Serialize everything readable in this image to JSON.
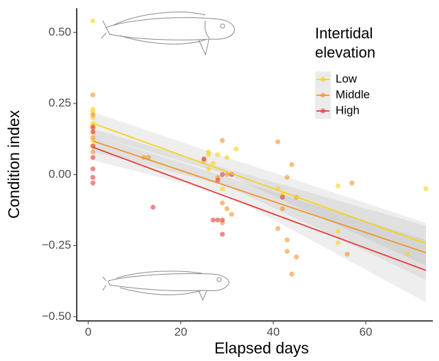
{
  "chart_data": {
    "type": "scatter",
    "x_label": "Elapsed days",
    "y_label": "Condition index",
    "legend_title": "Intertidal elevation",
    "xlim": [
      -2.5,
      74.5
    ],
    "ylim": [
      -0.515,
      0.585
    ],
    "xticks": [
      0,
      20,
      40,
      60
    ],
    "yticks": [
      {
        "value": 0.5,
        "label": "0.50"
      },
      {
        "value": 0.25,
        "label": "0.25"
      },
      {
        "value": 0,
        "label": "0.00"
      },
      {
        "value": -0.25,
        "label": "−0.25"
      },
      {
        "value": -0.5,
        "label": "−0.50"
      }
    ],
    "series": [
      {
        "name": "Low",
        "color": "#f5d316",
        "x": [
          1,
          1,
          1,
          1,
          1,
          1,
          1,
          1,
          26,
          26,
          28,
          27,
          30,
          32,
          26,
          29,
          41,
          42,
          54,
          54,
          54,
          69,
          73
        ],
        "values": [
          0.54,
          0.23,
          0.22,
          0.2,
          0.18,
          0.15,
          0.12,
          0.1,
          0.08,
          0.07,
          0.07,
          0.04,
          0.06,
          0.09,
          0.02,
          -0.05,
          -0.05,
          -0.07,
          -0.04,
          -0.2,
          -0.24,
          -0.28,
          -0.05
        ],
        "fit": {
          "x": [
            1,
            73
          ],
          "values": [
            0.18,
            -0.243
          ]
        },
        "band": {
          "x": [
            1,
            30,
            73
          ],
          "lower": [
            0.14,
            0.0,
            -0.32
          ],
          "upper": [
            0.22,
            0.06,
            -0.17
          ]
        }
      },
      {
        "name": "Middle",
        "color": "#f39322",
        "x": [
          1,
          1,
          1,
          1,
          1,
          12,
          13,
          25,
          29,
          28,
          29,
          30,
          31,
          30,
          29,
          41,
          41,
          43,
          44,
          43,
          43,
          44,
          45,
          45,
          42,
          57,
          56
        ],
        "values": [
          0.28,
          0.21,
          0.17,
          0.13,
          0.08,
          0.06,
          0.06,
          0.05,
          0.12,
          -0.01,
          -0.1,
          -0.12,
          -0.14,
          0.0,
          -0.17,
          0.115,
          -0.19,
          -0.01,
          0.035,
          -0.23,
          -0.27,
          -0.35,
          -0.29,
          -0.08,
          -0.12,
          -0.03,
          -0.28
        ],
        "fit": {
          "x": [
            1,
            73
          ],
          "values": [
            0.118,
            -0.275
          ]
        },
        "band": {
          "x": [
            1,
            30,
            73
          ],
          "lower": [
            0.08,
            -0.04,
            -0.37
          ],
          "upper": [
            0.16,
            0.02,
            -0.18
          ]
        }
      },
      {
        "name": "High",
        "color": "#e8383a",
        "x": [
          1,
          1,
          1,
          1,
          1,
          1,
          1,
          14,
          25,
          27,
          28,
          29,
          29,
          28,
          29,
          31,
          42
        ],
        "values": [
          0.165,
          0.15,
          0.1,
          0.06,
          0.02,
          -0.01,
          -0.03,
          -0.115,
          0.055,
          -0.16,
          -0.16,
          -0.21,
          -0.16,
          -0.02,
          0.0,
          0.0,
          -0.08
        ],
        "fit": {
          "x": [
            1,
            73
          ],
          "values": [
            0.096,
            -0.337
          ]
        },
        "band": {
          "x": [
            1,
            30,
            73
          ],
          "lower": [
            0.05,
            -0.07,
            -0.45
          ],
          "upper": [
            0.14,
            -0.01,
            -0.23
          ]
        }
      }
    ]
  }
}
